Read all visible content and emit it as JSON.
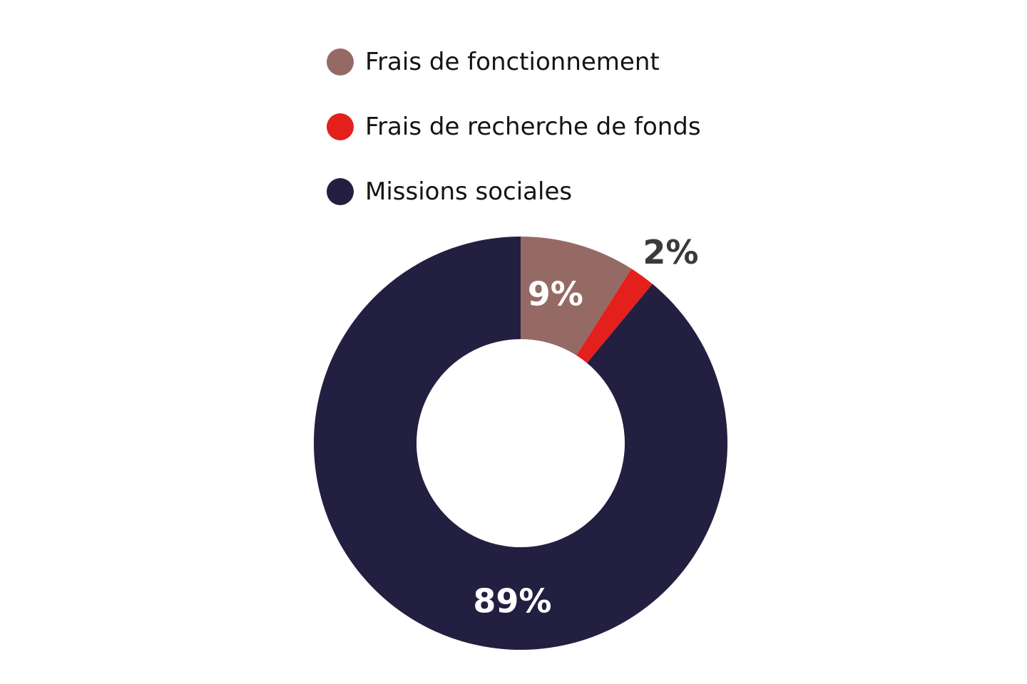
{
  "chart_data": {
    "type": "pie",
    "donut": true,
    "title": "",
    "legend_position": "top",
    "series": [
      {
        "name": "Frais de fonctionnement",
        "value": 9,
        "label": "9%",
        "color": "#956a65",
        "label_color": "#ffffff",
        "label_placement": "inside"
      },
      {
        "name": "Frais de recherche de fonds",
        "value": 2,
        "label": "2%",
        "color": "#e3201b",
        "label_color": "#3a3a3a",
        "label_placement": "outside"
      },
      {
        "name": "Missions sociales",
        "value": 89,
        "label": "89%",
        "color": "#221f41",
        "label_color": "#ffffff",
        "label_placement": "inside"
      }
    ]
  }
}
